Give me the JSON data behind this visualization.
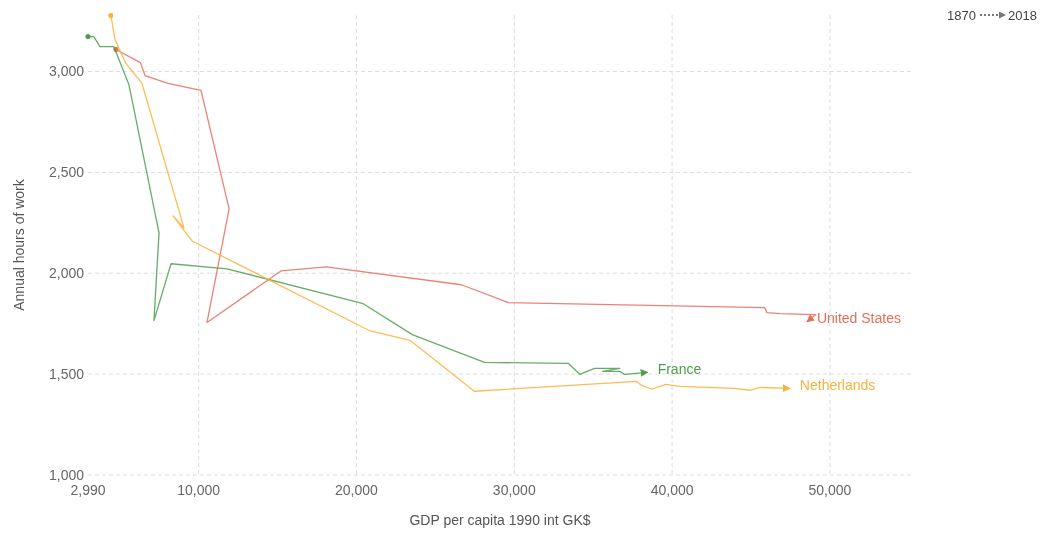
{
  "chart_data": {
    "type": "line",
    "xlabel": "GDP per capita 1990 int GK$",
    "ylabel": "Annual hours of work",
    "xlim": [
      2990,
      55200
    ],
    "xticks": [
      {
        "value": 2990,
        "label": "2,990"
      },
      {
        "value": 10000,
        "label": "10,000"
      },
      {
        "value": 20000,
        "label": "20,000"
      },
      {
        "value": 30000,
        "label": "30,000"
      },
      {
        "value": 40000,
        "label": "40,000"
      },
      {
        "value": 50000,
        "label": "50,000"
      }
    ],
    "ylim": [
      1000,
      3280
    ],
    "yticks": [
      {
        "value": 1000,
        "label": "1,000"
      },
      {
        "value": 1500,
        "label": "1,500"
      },
      {
        "value": 2000,
        "label": "2,000"
      },
      {
        "value": 2500,
        "label": "2,500"
      },
      {
        "value": 3000,
        "label": "3,000"
      }
    ],
    "grid": true,
    "marker": "none",
    "line_style": "solid",
    "annotations": [
      "1870",
      "2018"
    ],
    "series": [
      {
        "name": "United States",
        "color": "#e56e5a",
        "x": [
          4760,
          6310,
          6600,
          8060,
          10150,
          11930,
          10530,
          15230,
          18080,
          26650,
          29630,
          45870,
          46000,
          46830,
          49110,
          48540
        ],
        "values": [
          3109,
          3044,
          2980,
          2941,
          2906,
          2319,
          1756,
          2012,
          2032,
          1943,
          1854,
          1830,
          1805,
          1800,
          1795,
          1760
        ]
      },
      {
        "name": "France",
        "color": "#4c9f4c",
        "x": [
          2990,
          3360,
          3740,
          4630,
          5580,
          7490,
          7170,
          8250,
          11800,
          20430,
          23540,
          28110,
          33440,
          33880,
          34140,
          35090,
          36680,
          35600,
          36680,
          36990,
          38450
        ],
        "values": [
          3173,
          3173,
          3123,
          3123,
          2936,
          2200,
          1765,
          2047,
          2022,
          1849,
          1696,
          1558,
          1553,
          1519,
          1499,
          1528,
          1528,
          1514,
          1514,
          1499,
          1509
        ]
      },
      {
        "name": "Netherlands",
        "color": "#f9b03c",
        "x": [
          4440,
          4700,
          5390,
          6410,
          9070,
          8380,
          9580,
          20810,
          23410,
          27470,
          37750,
          38070,
          38710,
          39590,
          40480,
          43970,
          44920,
          45560,
          47460
        ],
        "values": [
          3277,
          3158,
          3040,
          2941,
          2225,
          2284,
          2160,
          1716,
          1667,
          1415,
          1464,
          1444,
          1425,
          1449,
          1439,
          1429,
          1420,
          1434,
          1429
        ]
      }
    ]
  }
}
